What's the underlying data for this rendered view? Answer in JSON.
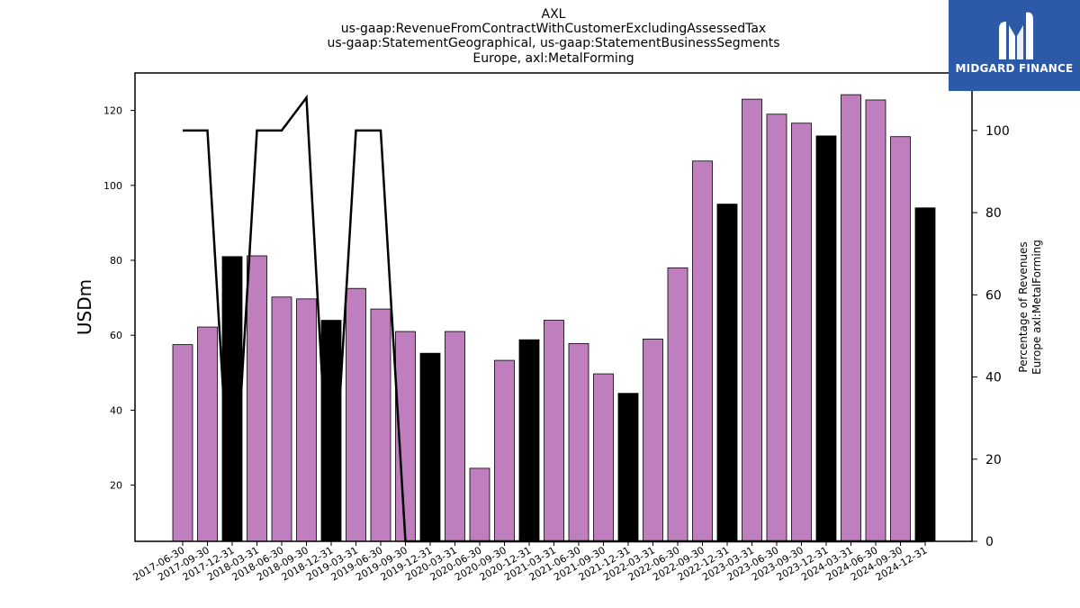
{
  "chart_data": {
    "type": "bar",
    "title_lines": [
      "AXL",
      "us-gaap:RevenueFromContractWithCustomerExcludingAssessedTax",
      "us-gaap:StatementGeographical, us-gaap:StatementBusinessSegments",
      "Europe, axl:MetalForming"
    ],
    "ylabel": "USDm",
    "ylabel_right": [
      "Percentage of Revenues",
      "Europe axl:MetalForming"
    ],
    "categories": [
      "2017-06-30",
      "2017-09-30",
      "2017-12-31",
      "2018-03-31",
      "2018-06-30",
      "2018-09-30",
      "2018-12-31",
      "2019-03-31",
      "2019-06-30",
      "2019-09-30",
      "2019-12-31",
      "2020-03-31",
      "2020-06-30",
      "2020-09-30",
      "2020-12-31",
      "2021-03-31",
      "2021-06-30",
      "2021-09-30",
      "2021-12-31",
      "2022-03-31",
      "2022-06-30",
      "2022-09-30",
      "2022-12-31",
      "2023-03-31",
      "2023-06-30",
      "2023-09-30",
      "2023-12-31",
      "2024-03-31",
      "2024-06-30",
      "2024-09-30",
      "2024-12-31"
    ],
    "values": [
      57.5,
      62.2,
      81.0,
      81.2,
      70.2,
      69.7,
      64.0,
      72.5,
      67.0,
      61.0,
      55.2,
      61.0,
      24.5,
      53.3,
      58.8,
      64.0,
      57.8,
      49.7,
      44.5,
      59.0,
      78.0,
      106.5,
      95.0,
      123.0,
      119.0,
      116.6,
      113.2,
      124.2,
      122.8,
      113.0,
      94.0
    ],
    "bar_colors": [
      "#bf7fbf",
      "#bf7fbf",
      "#000000",
      "#bf7fbf",
      "#bf7fbf",
      "#bf7fbf",
      "#000000",
      "#bf7fbf",
      "#bf7fbf",
      "#bf7fbf",
      "#000000",
      "#bf7fbf",
      "#bf7fbf",
      "#bf7fbf",
      "#000000",
      "#bf7fbf",
      "#bf7fbf",
      "#bf7fbf",
      "#000000",
      "#bf7fbf",
      "#bf7fbf",
      "#bf7fbf",
      "#000000",
      "#bf7fbf",
      "#bf7fbf",
      "#bf7fbf",
      "#000000",
      "#bf7fbf",
      "#bf7fbf",
      "#bf7fbf",
      "#000000"
    ],
    "percent_line": [
      100,
      100,
      0,
      100,
      100,
      108,
      0,
      100,
      100,
      0,
      0,
      0,
      0,
      0,
      0,
      0,
      0,
      0,
      0,
      0,
      0,
      0,
      0,
      0,
      0,
      0,
      0,
      0,
      0,
      0,
      0
    ],
    "ylim": [
      5,
      130
    ],
    "yticks": [
      20,
      40,
      60,
      80,
      100,
      120
    ],
    "ylim_right": [
      0,
      114
    ],
    "yticks_right": [
      0,
      20,
      40,
      60,
      80,
      100
    ],
    "grid": false,
    "colors": {
      "bar_default": "#bf7fbf",
      "bar_highlight": "#000000",
      "line": "#000000"
    }
  },
  "logo": {
    "text": "MIDGARD FINANCE",
    "background": "#2c5aa8"
  }
}
